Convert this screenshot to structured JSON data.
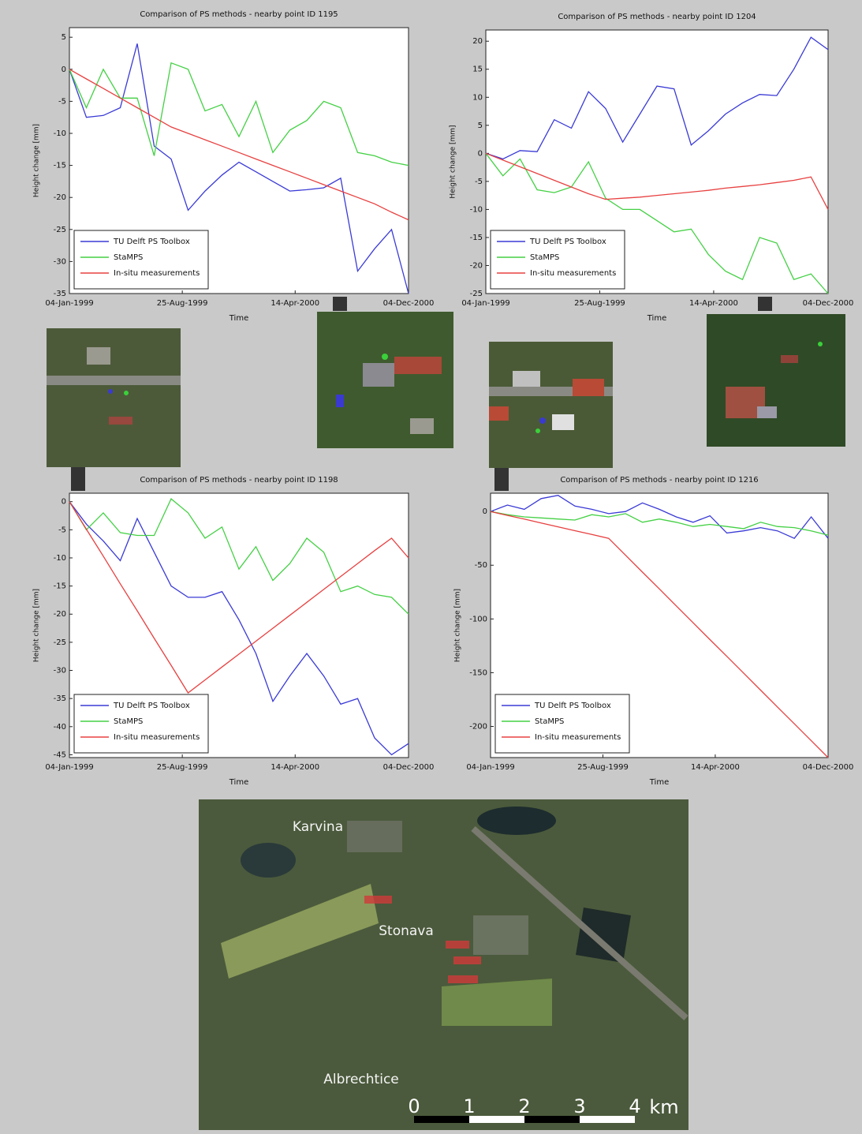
{
  "chart_data": [
    {
      "type": "line",
      "title": "Comparison of PS methods - nearby point ID 1195",
      "x_label": "Time",
      "y_label": "Height change [mm]",
      "x": [
        "04-Jan-1999",
        "08-Feb-1999",
        "15-Mar-1999",
        "19-Apr-1999",
        "24-May-1999",
        "28-Jun-1999",
        "02-Aug-1999",
        "06-Sep-1999",
        "11-Oct-1999",
        "15-Nov-1999",
        "20-Dec-1999",
        "24-Jan-2000",
        "28-Feb-2000",
        "03-Apr-2000",
        "08-May-2000",
        "12-Jun-2000",
        "17-Jul-2000",
        "21-Aug-2000",
        "25-Sep-2000",
        "30-Oct-2000",
        "04-Dec-2000"
      ],
      "xlim": [
        "04-Jan-1999",
        "04-Dec-2000"
      ],
      "xticks": [
        "04-Jan-1999",
        "25-Aug-1999",
        "14-Apr-2000",
        "04-Dec-2000"
      ],
      "ylim": [
        -35,
        6.5
      ],
      "yticks": [
        -35,
        -30,
        -25,
        -20,
        -15,
        -10,
        -5,
        0,
        5
      ],
      "legend": "lower left",
      "series": [
        {
          "name": "TU Delft PS Toolbox",
          "color": "#3a3ad6",
          "values": [
            0,
            -7.5,
            -7.2,
            -6,
            4,
            -12,
            -14,
            -22,
            -19,
            -16.5,
            -14.5,
            -16,
            -17.5,
            -19,
            -18.8,
            -18.5,
            -17,
            -31.5,
            -28,
            -25,
            -35
          ]
        },
        {
          "name": "StaMPS",
          "color": "#44d044",
          "values": [
            0,
            -6,
            0,
            -4.5,
            -4.5,
            -13.5,
            1,
            0,
            -6.5,
            -5.5,
            -10.5,
            -5,
            -13,
            -9.5,
            -8,
            -5,
            -6,
            -13,
            -13.5,
            -14.5,
            -15
          ]
        },
        {
          "name": "In-situ measurements",
          "color": "#e84040",
          "values": [
            0,
            -1.5,
            -3,
            -4.5,
            -6,
            -7.5,
            -9,
            -10,
            -11,
            -12,
            -13,
            -14,
            -15,
            -16,
            -17,
            -18,
            -19,
            -20,
            -21,
            -22.3,
            -23.5
          ]
        }
      ]
    },
    {
      "type": "line",
      "title": "Comparison of PS methods - nearby point ID 1204",
      "x_label": "Time",
      "y_label": "Height change [mm]",
      "x": [
        "04-Jan-1999",
        "08-Feb-1999",
        "15-Mar-1999",
        "19-Apr-1999",
        "24-May-1999",
        "28-Jun-1999",
        "02-Aug-1999",
        "06-Sep-1999",
        "11-Oct-1999",
        "15-Nov-1999",
        "20-Dec-1999",
        "24-Jan-2000",
        "28-Feb-2000",
        "03-Apr-2000",
        "08-May-2000",
        "12-Jun-2000",
        "17-Jul-2000",
        "21-Aug-2000",
        "25-Sep-2000",
        "30-Oct-2000",
        "04-Dec-2000"
      ],
      "xlim": [
        "04-Jan-1999",
        "04-Dec-2000"
      ],
      "xticks": [
        "04-Jan-1999",
        "25-Aug-1999",
        "14-Apr-2000",
        "04-Dec-2000"
      ],
      "ylim": [
        -25,
        22
      ],
      "yticks": [
        -25,
        -20,
        -15,
        -10,
        -5,
        0,
        5,
        10,
        15,
        20
      ],
      "legend": "lower left",
      "series": [
        {
          "name": "TU Delft PS Toolbox",
          "color": "#3a3ad6",
          "values": [
            0,
            -1,
            0.5,
            0.3,
            6,
            4.5,
            11,
            8,
            2,
            7,
            12,
            11.5,
            1.5,
            4,
            7,
            9,
            10.5,
            10.3,
            15,
            20.7,
            18.5
          ]
        },
        {
          "name": "StaMPS",
          "color": "#44d044",
          "values": [
            0,
            -4,
            -1,
            -6.5,
            -7,
            -6,
            -1.5,
            -8,
            -10,
            -10,
            -12,
            -14,
            -13.5,
            -18,
            -21,
            -22.5,
            -15,
            -16,
            -22.5,
            -21.5,
            -25
          ]
        },
        {
          "name": "In-situ measurements",
          "color": "#e84040",
          "values": [
            0,
            -1.2,
            -2.4,
            -3.6,
            -4.8,
            -6,
            -7.2,
            -8.2,
            -8,
            -7.8,
            -7.5,
            -7.2,
            -6.9,
            -6.6,
            -6.2,
            -5.9,
            -5.6,
            -5.2,
            -4.8,
            -4.2,
            -10
          ]
        }
      ]
    },
    {
      "type": "line",
      "title": "Comparison of PS methods - nearby point ID 1198",
      "x_label": "Time",
      "y_label": "Height change [mm]",
      "x": [
        "04-Jan-1999",
        "08-Feb-1999",
        "15-Mar-1999",
        "19-Apr-1999",
        "24-May-1999",
        "28-Jun-1999",
        "02-Aug-1999",
        "06-Sep-1999",
        "11-Oct-1999",
        "15-Nov-1999",
        "20-Dec-1999",
        "24-Jan-2000",
        "28-Feb-2000",
        "03-Apr-2000",
        "08-May-2000",
        "12-Jun-2000",
        "17-Jul-2000",
        "21-Aug-2000",
        "25-Sep-2000",
        "30-Oct-2000",
        "04-Dec-2000"
      ],
      "xlim": [
        "04-Jan-1999",
        "04-Dec-2000"
      ],
      "xticks": [
        "04-Jan-1999",
        "25-Aug-1999",
        "14-Apr-2000",
        "04-Dec-2000"
      ],
      "ylim": [
        -45.5,
        1.5
      ],
      "yticks": [
        -45,
        -40,
        -35,
        -30,
        -25,
        -20,
        -15,
        -10,
        -5,
        0
      ],
      "legend": "lower left",
      "series": [
        {
          "name": "TU Delft PS Toolbox",
          "color": "#3a3ad6",
          "values": [
            0,
            -4,
            -7,
            -10.5,
            -3,
            -9,
            -15,
            -17,
            -17,
            -16,
            -21,
            -27,
            -35.5,
            -31,
            -27,
            -31,
            -36,
            -35,
            -42,
            -45,
            -43
          ]
        },
        {
          "name": "StaMPS",
          "color": "#44d044",
          "values": [
            0,
            -5,
            -2,
            -5.5,
            -6,
            -6,
            0.5,
            -2,
            -6.5,
            -4.5,
            -12,
            -8,
            -14,
            -11,
            -6.5,
            -9,
            -16,
            -15,
            -16.5,
            -17,
            -20
          ]
        },
        {
          "name": "In-situ measurements",
          "color": "#e84040",
          "values": [
            0,
            -4.9,
            -9.7,
            -14.6,
            -19.4,
            -24.3,
            -29.1,
            -34,
            -31.7,
            -29.4,
            -27.1,
            -24.8,
            -22.5,
            -20.2,
            -17.9,
            -15.6,
            -13.3,
            -11,
            -8.7,
            -6.5,
            -10
          ]
        }
      ]
    },
    {
      "type": "line",
      "title": "Comparison of PS methods - nearby point ID 1216",
      "x_label": "Time",
      "y_label": "Height change [mm]",
      "x": [
        "04-Jan-1999",
        "08-Feb-1999",
        "15-Mar-1999",
        "19-Apr-1999",
        "24-May-1999",
        "28-Jun-1999",
        "02-Aug-1999",
        "06-Sep-1999",
        "11-Oct-1999",
        "15-Nov-1999",
        "20-Dec-1999",
        "24-Jan-2000",
        "28-Feb-2000",
        "03-Apr-2000",
        "08-May-2000",
        "12-Jun-2000",
        "17-Jul-2000",
        "21-Aug-2000",
        "25-Sep-2000",
        "30-Oct-2000",
        "04-Dec-2000"
      ],
      "xlim": [
        "04-Jan-1999",
        "04-Dec-2000"
      ],
      "xticks": [
        "04-Jan-1999",
        "25-Aug-1999",
        "14-Apr-2000",
        "04-Dec-2000"
      ],
      "ylim": [
        -229,
        17
      ],
      "yticks": [
        -200,
        -150,
        -100,
        -50,
        0
      ],
      "legend": "lower left",
      "series": [
        {
          "name": "TU Delft PS Toolbox",
          "color": "#3a3ad6",
          "values": [
            0,
            6,
            2,
            12,
            15,
            5,
            2,
            -2,
            0,
            8,
            2,
            -5,
            -10,
            -4,
            -20,
            -18,
            -15,
            -18,
            -25,
            -5,
            -25
          ]
        },
        {
          "name": "StaMPS",
          "color": "#44d044",
          "values": [
            0,
            -3,
            -5,
            -6,
            -7,
            -8,
            -3,
            -5,
            -2,
            -10,
            -7,
            -10,
            -14,
            -12,
            -14,
            -16,
            -10,
            -14,
            -15,
            -18,
            -22
          ]
        },
        {
          "name": "In-situ measurements",
          "color": "#e84040",
          "values": [
            0,
            -3.6,
            -7.1,
            -10.7,
            -14.3,
            -17.9,
            -21.4,
            -25,
            -40.7,
            -56.4,
            -72,
            -87.8,
            -103.5,
            -119.2,
            -134.8,
            -150.5,
            -166.2,
            -181.9,
            -197.6,
            -213.3,
            -229
          ]
        }
      ]
    }
  ],
  "map": {
    "places": [
      "Karvina",
      "Stonava",
      "Albrechtice"
    ],
    "scale_labels": [
      0,
      1,
      2,
      3,
      4
    ],
    "scale_unit": "km"
  }
}
